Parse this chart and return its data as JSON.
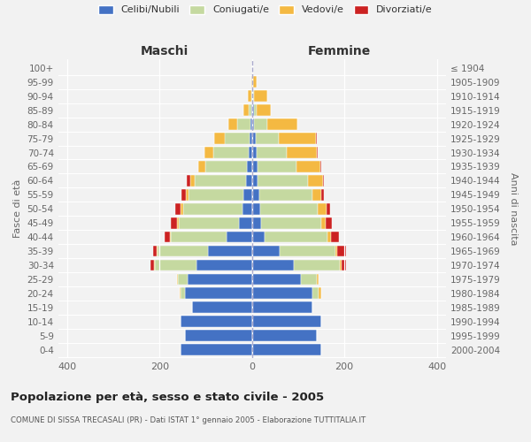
{
  "age_groups": [
    "0-4",
    "5-9",
    "10-14",
    "15-19",
    "20-24",
    "25-29",
    "30-34",
    "35-39",
    "40-44",
    "45-49",
    "50-54",
    "55-59",
    "60-64",
    "65-69",
    "70-74",
    "75-79",
    "80-84",
    "85-89",
    "90-94",
    "95-99",
    "100+"
  ],
  "birth_years": [
    "2000-2004",
    "1995-1999",
    "1990-1994",
    "1985-1989",
    "1980-1984",
    "1975-1979",
    "1970-1974",
    "1965-1969",
    "1960-1964",
    "1955-1959",
    "1950-1954",
    "1945-1949",
    "1940-1944",
    "1935-1939",
    "1930-1934",
    "1925-1929",
    "1920-1924",
    "1915-1919",
    "1910-1914",
    "1905-1909",
    "≤ 1904"
  ],
  "male_single": [
    155,
    145,
    155,
    130,
    145,
    140,
    120,
    95,
    55,
    28,
    20,
    18,
    14,
    12,
    8,
    5,
    3,
    2,
    0,
    0,
    0
  ],
  "male_married": [
    0,
    0,
    0,
    0,
    10,
    20,
    90,
    110,
    120,
    130,
    130,
    120,
    110,
    90,
    75,
    55,
    30,
    5,
    2,
    0,
    0
  ],
  "male_widowed": [
    0,
    0,
    0,
    0,
    2,
    2,
    2,
    2,
    3,
    4,
    5,
    5,
    10,
    15,
    20,
    22,
    18,
    12,
    8,
    2,
    0
  ],
  "male_divorced": [
    0,
    0,
    0,
    0,
    0,
    0,
    8,
    8,
    12,
    14,
    12,
    10,
    8,
    0,
    0,
    0,
    0,
    0,
    0,
    0,
    0
  ],
  "female_single": [
    150,
    140,
    150,
    130,
    130,
    105,
    90,
    60,
    28,
    20,
    18,
    15,
    12,
    12,
    10,
    8,
    5,
    5,
    2,
    2,
    0
  ],
  "female_married": [
    0,
    0,
    0,
    0,
    15,
    35,
    100,
    120,
    135,
    130,
    125,
    115,
    110,
    85,
    65,
    50,
    28,
    5,
    2,
    0,
    0
  ],
  "female_widowed": [
    0,
    0,
    0,
    0,
    4,
    4,
    4,
    5,
    8,
    10,
    18,
    20,
    32,
    50,
    65,
    80,
    65,
    30,
    28,
    8,
    2
  ],
  "female_divorced": [
    0,
    0,
    0,
    0,
    0,
    0,
    10,
    18,
    18,
    12,
    8,
    5,
    2,
    2,
    2,
    2,
    0,
    0,
    0,
    0,
    0
  ],
  "colors": {
    "single": "#4472C4",
    "married": "#C5D9A0",
    "widowed": "#F4B942",
    "divorced": "#CC2222"
  },
  "legend_labels": [
    "Celibi/Nubili",
    "Coniugati/e",
    "Vedovi/e",
    "Divorziati/e"
  ],
  "xlim": 420,
  "title1": "Popolazione per età, sesso e stato civile - 2005",
  "title2": "COMUNE DI SISSA TRECASALI (PR) - Dati ISTAT 1° gennaio 2005 - Elaborazione TUTTITALIA.IT",
  "ylabel_left": "Fasce di età",
  "ylabel_right": "Anni di nascita",
  "xlabel_left": "Maschi",
  "xlabel_right": "Femmine",
  "bg_color": "#F2F2F2"
}
